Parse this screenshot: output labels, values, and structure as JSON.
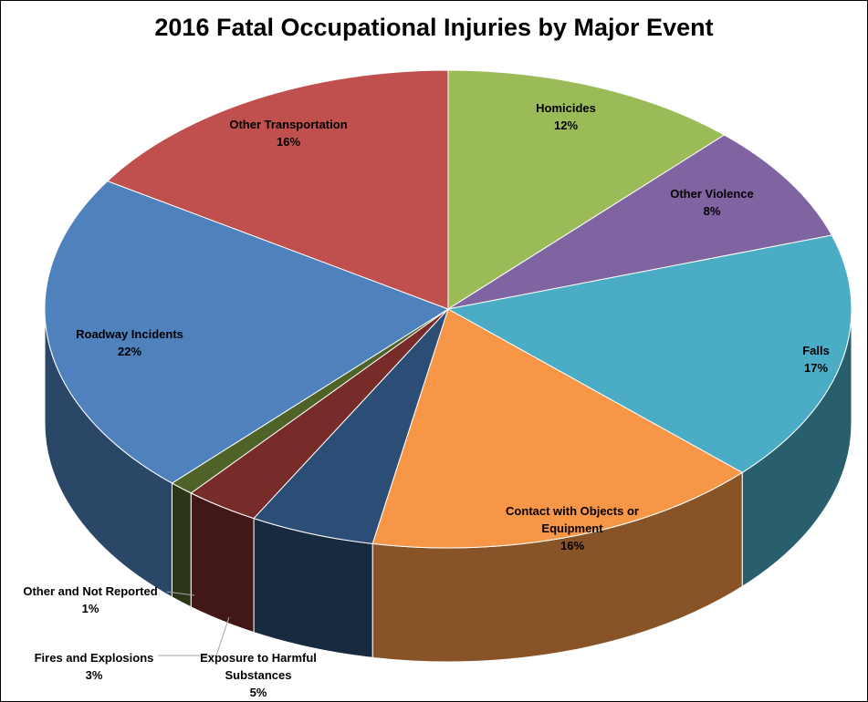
{
  "chart_data": {
    "type": "pie3d",
    "title": "2016 Fatal Occupational Injuries by Major Event",
    "categories": [
      "Homicides",
      "Other Violence",
      "Falls",
      "Contact with Objects or Equipment",
      "Exposure to Harmful Substances",
      "Fires and Explosions",
      "Other and Not Reported",
      "Roadway Incidents",
      "Other Transportation"
    ],
    "values": [
      12,
      8,
      17,
      16,
      5,
      3,
      1,
      22,
      16
    ],
    "value_labels": [
      "12%",
      "8%",
      "17%",
      "16%",
      "5%",
      "3%",
      "1%",
      "22%",
      "16%"
    ],
    "colors": [
      "#9bbb59",
      "#8064a2",
      "#4bacc6",
      "#f79646",
      "#2c4d75",
      "#772c2a",
      "#4f6228",
      "#4f81bd",
      "#c0504d"
    ]
  }
}
